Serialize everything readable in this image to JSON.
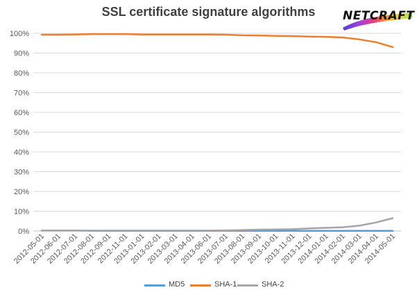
{
  "chart_data": {
    "type": "line",
    "title": "SSL certificate signature algorithms",
    "xlabel": "",
    "ylabel": "",
    "ylim": [
      0,
      100
    ],
    "y_ticks": [
      "0%",
      "10%",
      "20%",
      "30%",
      "40%",
      "50%",
      "60%",
      "70%",
      "80%",
      "90%",
      "100%"
    ],
    "grid": true,
    "legend_position": "bottom",
    "categories": [
      "2012-05-01",
      "2012-06-01",
      "2012-07-01",
      "2012-08-01",
      "2012-09-01",
      "2012-11-01",
      "2013-01-01",
      "2013-02-01",
      "2013-03-01",
      "2013-04-01",
      "2013-06-01",
      "2013-07-01",
      "2013-08-01",
      "2013-09-01",
      "2013-10-01",
      "2013-11-01",
      "2013-12-01",
      "2014-01-01",
      "2014-02-01",
      "2014-03-01",
      "2014-04-01",
      "2014-05-01"
    ],
    "series": [
      {
        "name": "MD5",
        "color": "#5b9bd5",
        "values": [
          0.2,
          0.2,
          0.2,
          0.1,
          0.1,
          0.1,
          0.1,
          0.1,
          0.1,
          0.1,
          0.1,
          0.1,
          0.1,
          0.1,
          0.1,
          0.1,
          0.1,
          0.1,
          0.1,
          0.1,
          0.1,
          0.1
        ]
      },
      {
        "name": "SHA-1",
        "color": "#ed7d31",
        "values": [
          99.3,
          99.3,
          99.4,
          99.6,
          99.6,
          99.6,
          99.4,
          99.4,
          99.4,
          99.4,
          99.4,
          99.3,
          99.0,
          98.9,
          98.7,
          98.6,
          98.3,
          98.2,
          97.9,
          96.9,
          95.5,
          93.0
        ]
      },
      {
        "name": "SHA-2",
        "color": "#a5a5a5",
        "values": [
          0.2,
          0.2,
          0.2,
          0.2,
          0.2,
          0.2,
          0.2,
          0.2,
          0.2,
          0.2,
          0.2,
          0.3,
          0.5,
          0.7,
          0.8,
          0.9,
          1.3,
          1.6,
          1.9,
          2.7,
          4.3,
          6.5
        ]
      }
    ]
  },
  "logo": {
    "text": "NETCRAFT"
  }
}
